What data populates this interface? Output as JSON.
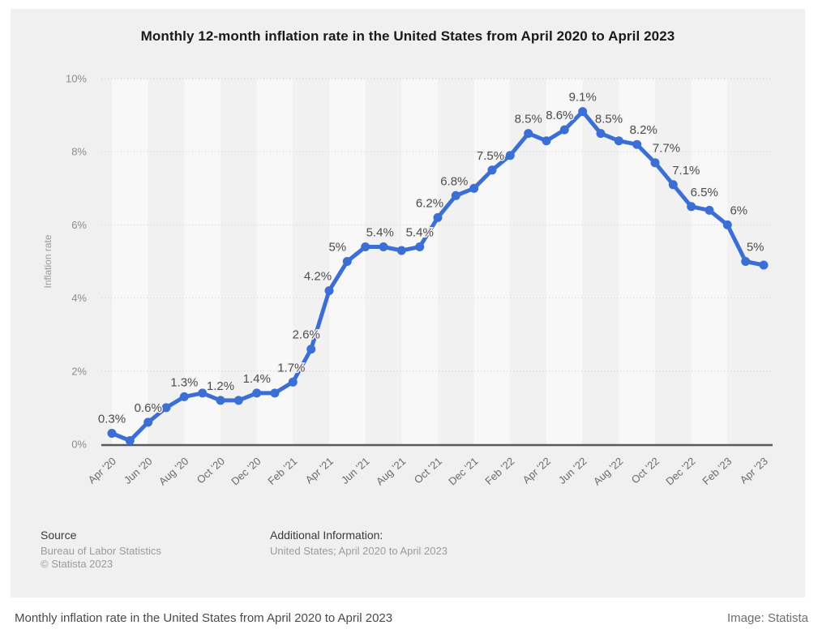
{
  "header": {
    "title": "Monthly 12-month inflation rate in the United States from April 2020 to April 2023"
  },
  "chart_data": {
    "type": "line",
    "title": "Monthly 12-month inflation rate in the United States from April 2020 to April 2023",
    "xlabel": "",
    "ylabel": "Inflation rate",
    "ylim": [
      0,
      10
    ],
    "ytick_step": 2,
    "ytick_suffix": "%",
    "grid": "horizontal-dotted",
    "legend": "none",
    "background_stripes": true,
    "colors": {
      "line": "#3b6fd6",
      "stripe_light": "#f8f8f8",
      "stripe_dark": "#f1f1f1",
      "gridline": "#c9c9c9",
      "axis_line": "#58595b",
      "tick_label": "#8c8c8c",
      "x_tick_label": "#6b6b6b",
      "data_label": "#4d4d4d"
    },
    "x": [
      "Apr '20",
      "May '20",
      "Jun '20",
      "Jul '20",
      "Aug '20",
      "Sep '20",
      "Oct '20",
      "Nov '20",
      "Dec '20",
      "Jan '21",
      "Feb '21",
      "Mar '21",
      "Apr '21",
      "May '21",
      "Jun '21",
      "Jul '21",
      "Aug '21",
      "Sep '21",
      "Oct '21",
      "Nov '21",
      "Dec '21",
      "Jan '22",
      "Feb '22",
      "Mar '22",
      "Apr '22",
      "May '22",
      "Jun '22",
      "Jul '22",
      "Aug '22",
      "Sep '22",
      "Oct '22",
      "Nov '22",
      "Dec '22",
      "Jan '23",
      "Feb '23",
      "Mar '23",
      "Apr '23"
    ],
    "x_tick_every": 2,
    "values": [
      0.3,
      0.1,
      0.6,
      1.0,
      1.3,
      1.4,
      1.2,
      1.2,
      1.4,
      1.4,
      1.7,
      2.6,
      4.2,
      5.0,
      5.4,
      5.4,
      5.3,
      5.4,
      6.2,
      6.8,
      7.0,
      7.5,
      7.9,
      8.5,
      8.3,
      8.6,
      9.1,
      8.5,
      8.3,
      8.2,
      7.7,
      7.1,
      6.5,
      6.4,
      6.0,
      5.0,
      4.9
    ],
    "point_labels": [
      {
        "index": 0,
        "text": "0.3%",
        "dx": 0
      },
      {
        "index": 2,
        "text": "0.6%",
        "dx": 0
      },
      {
        "index": 4,
        "text": "1.3%",
        "dx": 0
      },
      {
        "index": 6,
        "text": "1.2%",
        "dx": 0
      },
      {
        "index": 8,
        "text": "1.4%",
        "dx": 0
      },
      {
        "index": 10,
        "text": "1.7%",
        "dx": -2
      },
      {
        "index": 11,
        "text": "2.6%",
        "dx": -6
      },
      {
        "index": 12,
        "text": "4.2%",
        "dx": -14
      },
      {
        "index": 13,
        "text": "5%",
        "dx": -12
      },
      {
        "index": 14,
        "text": "5.4%",
        "dx": 18
      },
      {
        "index": 17,
        "text": "5.4%",
        "dx": 0
      },
      {
        "index": 18,
        "text": "6.2%",
        "dx": -10
      },
      {
        "index": 19,
        "text": "6.8%",
        "dx": -2
      },
      {
        "index": 21,
        "text": "7.5%",
        "dx": -2
      },
      {
        "index": 23,
        "text": "8.5%",
        "dx": 0
      },
      {
        "index": 25,
        "text": "8.6%",
        "dx": -6
      },
      {
        "index": 26,
        "text": "9.1%",
        "dx": 0
      },
      {
        "index": 27,
        "text": "8.5%",
        "dx": 10
      },
      {
        "index": 29,
        "text": "8.2%",
        "dx": 8
      },
      {
        "index": 30,
        "text": "7.7%",
        "dx": 14
      },
      {
        "index": 31,
        "text": "7.1%",
        "dx": 16
      },
      {
        "index": 32,
        "text": "6.5%",
        "dx": 16
      },
      {
        "index": 34,
        "text": "6%",
        "dx": 14
      },
      {
        "index": 35,
        "text": "5%",
        "dx": 12
      }
    ]
  },
  "footer": {
    "source_heading": "Source",
    "source_line1": "Bureau of Labor Statistics",
    "source_line2": "© Statista 2023",
    "additional_heading": "Additional Information:",
    "additional_line1": "United States; April 2020 to April 2023"
  },
  "caption": {
    "text": "Monthly inflation rate in the United States from April 2020 to April 2023",
    "credit": "Image: Statista"
  }
}
